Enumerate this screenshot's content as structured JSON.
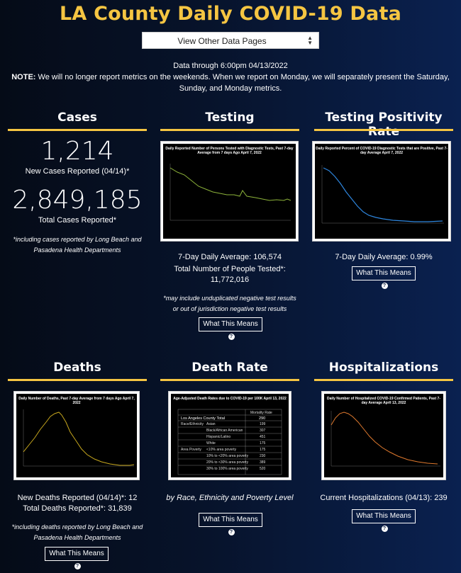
{
  "header": {
    "title": "LA County Daily COVID-19 Data",
    "select_value": "View Other Data Pages",
    "data_through": "Data through 6:00pm 04/13/2022",
    "note_label": "NOTE:",
    "note_text": "We will no longer report metrics on the weekends. When we report on Monday, we will separately present the Saturday, Sunday, and Monday metrics."
  },
  "cases": {
    "title": "Cases",
    "new_value": "1,214",
    "new_label": "New Cases Reported (04/14)*",
    "total_value": "2,849,185",
    "total_label": "Total Cases Reported*",
    "footnote": "*including cases reported by Long Beach and Pasadena Health Departments"
  },
  "testing": {
    "title": "Testing",
    "chart_title": "Daily Reported Number of Persons Tested with Diagnostic Tests, Past 7-day Average from 7 days Ago April 7, 2022",
    "avg": "7-Day Daily Average: 106,574",
    "total": "Total Number of People Tested*: 11,772,016",
    "footnote": "*may include unduplicated negative test results or out of jurisdiction negative test results",
    "button": "What This Means"
  },
  "positivity": {
    "title": "Testing Positivity Rate",
    "chart_title": "Daily Reported Percent of COVID-19 Diagnostic Tests that are Positive, Past 7-day Average April 7, 2022",
    "avg": "7-Day Daily Average: 0.99%",
    "button": "What This Means"
  },
  "deaths": {
    "title": "Deaths",
    "chart_title": "Daily Number of Deaths, Past 7-day Average from 7 days Ago April 7, 2022",
    "new": "New Deaths Reported (04/14)*: 12",
    "total": "Total Deaths Reported*: 31,839",
    "footnote": "*including deaths reported by Long Beach and Pasadena Health Departments",
    "button": "What This Means"
  },
  "death_rate": {
    "title": "Death Rate",
    "chart_title": "Age-Adjusted Death Rates due to COVID-19 per 100K April 13, 2022",
    "caption": "by Race, Ethnicity and Poverty Level",
    "button": "What This Means",
    "table": {
      "header": "Mortality Rate",
      "total_label": "Los Angeles County Total",
      "total_value": "290",
      "rows": [
        {
          "group": "Race/Ethnicity",
          "label": "Asian",
          "value": "199"
        },
        {
          "group": "",
          "label": "Black/African American",
          "value": "307"
        },
        {
          "group": "",
          "label": "Hispanic/Latino",
          "value": "451"
        },
        {
          "group": "",
          "label": "White",
          "value": "175"
        },
        {
          "group": "Area Poverty",
          "label": "<10% area poverty",
          "value": "175"
        },
        {
          "group": "",
          "label": "10% to <20% area poverty",
          "value": "230"
        },
        {
          "group": "",
          "label": "20% to <30% area poverty",
          "value": "389"
        },
        {
          "group": "",
          "label": "30% to 100% area poverty",
          "value": "520"
        }
      ]
    }
  },
  "hospitalizations": {
    "title": "Hospitalizations",
    "chart_title": "Daily Number of Hospitalized COVID-19 Confirmed Patients, Past 7-day Average April 13, 2022",
    "current": "Current Hospitalizations (04/13): 239",
    "button": "What This Means"
  },
  "colors": {
    "accent": "#f5c542",
    "testing_line": "#8db33a",
    "positivity_line": "#2e86de",
    "deaths_line": "#c8a81e",
    "hosp_line": "#e07a2e"
  }
}
